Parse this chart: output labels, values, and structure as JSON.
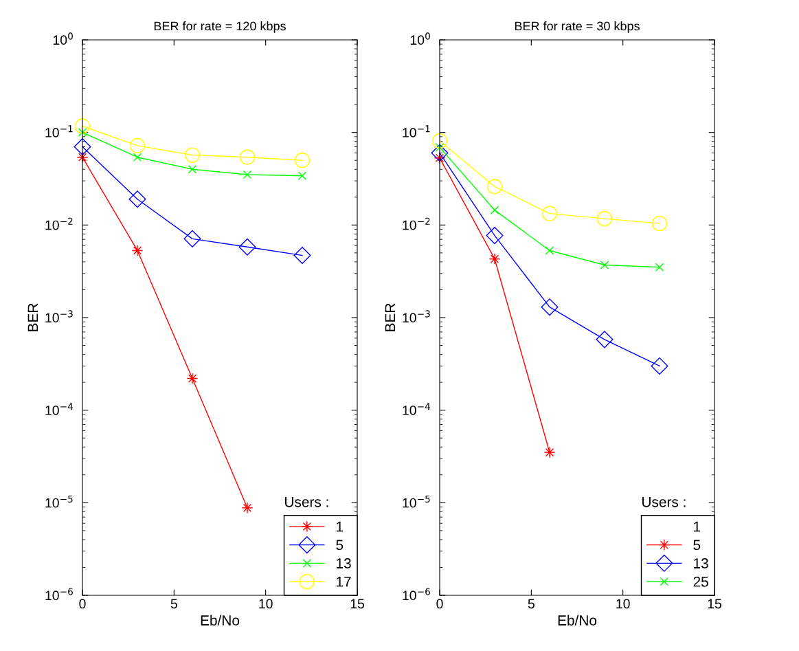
{
  "chart_data": [
    {
      "type": "line",
      "title": "BER for rate = 120 kbps",
      "xlabel": "Eb/No",
      "ylabel": "BER",
      "x": [
        0,
        3,
        6,
        9,
        12
      ],
      "log": "y",
      "xlim": [
        0,
        15
      ],
      "ylim": [
        1e-06,
        1
      ],
      "xticks": [
        0,
        5,
        10,
        15
      ],
      "yticks": [
        {
          "value": 1e-06,
          "label": "10$^{−6}$"
        },
        {
          "value": 1e-05,
          "label": "10$^{−5}$"
        },
        {
          "value": 0.0001,
          "label": "10$^{−4}$"
        },
        {
          "value": 0.001,
          "label": "10$^{−3}$"
        },
        {
          "value": 0.01,
          "label": "10$^{−2}$"
        },
        {
          "value": 0.1,
          "label": "10$^{−1}$"
        },
        {
          "value": 1,
          "label": "10$^{0}$"
        }
      ],
      "grid": false,
      "legend": "bottom right",
      "legend_title": "Users :",
      "series": [
        {
          "name": "1",
          "color": "#ff0000",
          "marker": "star",
          "values": [
            0.054,
            0.0053,
            0.00022,
            8.8e-06,
            null
          ]
        },
        {
          "name": "5",
          "color": "#0000ff",
          "marker": "diamond",
          "values": [
            0.07,
            0.019,
            0.0071,
            0.0058,
            0.0047
          ]
        },
        {
          "name": "13",
          "color": "#00ff00",
          "marker": "cross",
          "values": [
            0.1,
            0.054,
            0.04,
            0.035,
            0.034
          ]
        },
        {
          "name": "17",
          "color": "#ffff00",
          "marker": "circle",
          "values": [
            0.117,
            0.072,
            0.057,
            0.054,
            0.05
          ]
        }
      ]
    },
    {
      "type": "line",
      "title": "BER for rate = 30 kbps",
      "xlabel": "Eb/No",
      "ylabel": "BER",
      "x": [
        0,
        3,
        6,
        9,
        12
      ],
      "log": "y",
      "xlim": [
        0,
        15
      ],
      "ylim": [
        1e-06,
        1
      ],
      "xticks": [
        0,
        5,
        10,
        15
      ],
      "yticks": [
        {
          "value": 1e-06,
          "label": "10$^{−6}$"
        },
        {
          "value": 1e-05,
          "label": "10$^{−5}$"
        },
        {
          "value": 0.0001,
          "label": "10$^{−4}$"
        },
        {
          "value": 0.001,
          "label": "10$^{−3}$"
        },
        {
          "value": 0.01,
          "label": "10$^{−2}$"
        },
        {
          "value": 0.1,
          "label": "10$^{−1}$"
        },
        {
          "value": 1,
          "label": "10$^{0}$"
        }
      ],
      "grid": false,
      "legend": "bottom right",
      "legend_title": "Users :",
      "series": [
        {
          "name": "1",
          "marker": "none",
          "values": [
            null,
            null,
            null,
            null,
            null
          ]
        },
        {
          "name": "5",
          "color": "#ff0000",
          "marker": "star",
          "values": [
            0.053,
            0.0043,
            3.5e-05,
            null,
            null
          ]
        },
        {
          "name": "13",
          "color": "#0000ff",
          "marker": "diamond",
          "values": [
            0.06,
            0.0077,
            0.0013,
            0.00058,
            0.0003
          ]
        },
        {
          "name": "25",
          "color": "#00ff00",
          "marker": "cross",
          "values": [
            0.069,
            0.0145,
            0.0053,
            0.0037,
            0.0035
          ]
        },
        {
          "color": "#ffff00",
          "marker": "circle",
          "values": [
            0.081,
            0.026,
            0.0133,
            0.0117,
            0.0104
          ]
        }
      ]
    }
  ]
}
